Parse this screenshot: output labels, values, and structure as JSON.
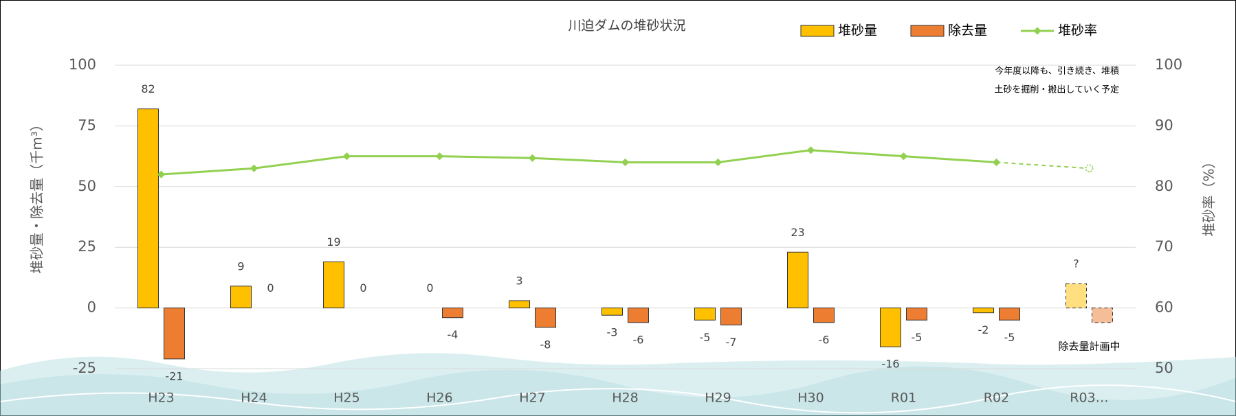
{
  "chart_data": {
    "type": "bar",
    "title": "川迫ダムの堆砂状況",
    "categories": [
      "H23",
      "H24",
      "H25",
      "H26",
      "H27",
      "H28",
      "H29",
      "H30",
      "R01",
      "R02",
      "R03…"
    ],
    "series": [
      {
        "name": "堆砂量",
        "type": "bar",
        "color": "#FFC000",
        "values": [
          82,
          9,
          19,
          0,
          3,
          -3,
          -5,
          23,
          -16,
          -2,
          10
        ],
        "value_labels": [
          "82",
          "9",
          "19",
          "0",
          "3",
          "-3",
          "-5",
          "23",
          "-16",
          "-2",
          "?"
        ]
      },
      {
        "name": "除去量",
        "type": "bar",
        "color": "#ED7D31",
        "values": [
          -21,
          0,
          0,
          -4,
          -8,
          -6,
          -7,
          -6,
          -5,
          -5,
          -6
        ],
        "value_labels": [
          "-21",
          "0",
          "0",
          "-4",
          "-8",
          "-6",
          "-7",
          "-6",
          "-5",
          "-5",
          null
        ]
      },
      {
        "name": "堆砂率",
        "type": "line",
        "axis": "y2",
        "color": "#92D050",
        "values": [
          82,
          83,
          85,
          85,
          84.7,
          84,
          84,
          86,
          85,
          84,
          83
        ]
      }
    ],
    "dashed_category_index": 10,
    "ylabel": "堆砂量・除去量（千m³）",
    "y2label": "堆砂率（%）",
    "ylim": [
      -25,
      100
    ],
    "yticks": [
      -25,
      0,
      25,
      50,
      75,
      100
    ],
    "y2lim": [
      50,
      100
    ],
    "y2ticks": [
      50,
      60,
      70,
      80,
      90,
      100
    ],
    "grid": true,
    "annotations": [
      "今年度以降も、引き続き、堆積",
      "土砂を掘削・搬出していく予定",
      "除去量計画中"
    ]
  }
}
